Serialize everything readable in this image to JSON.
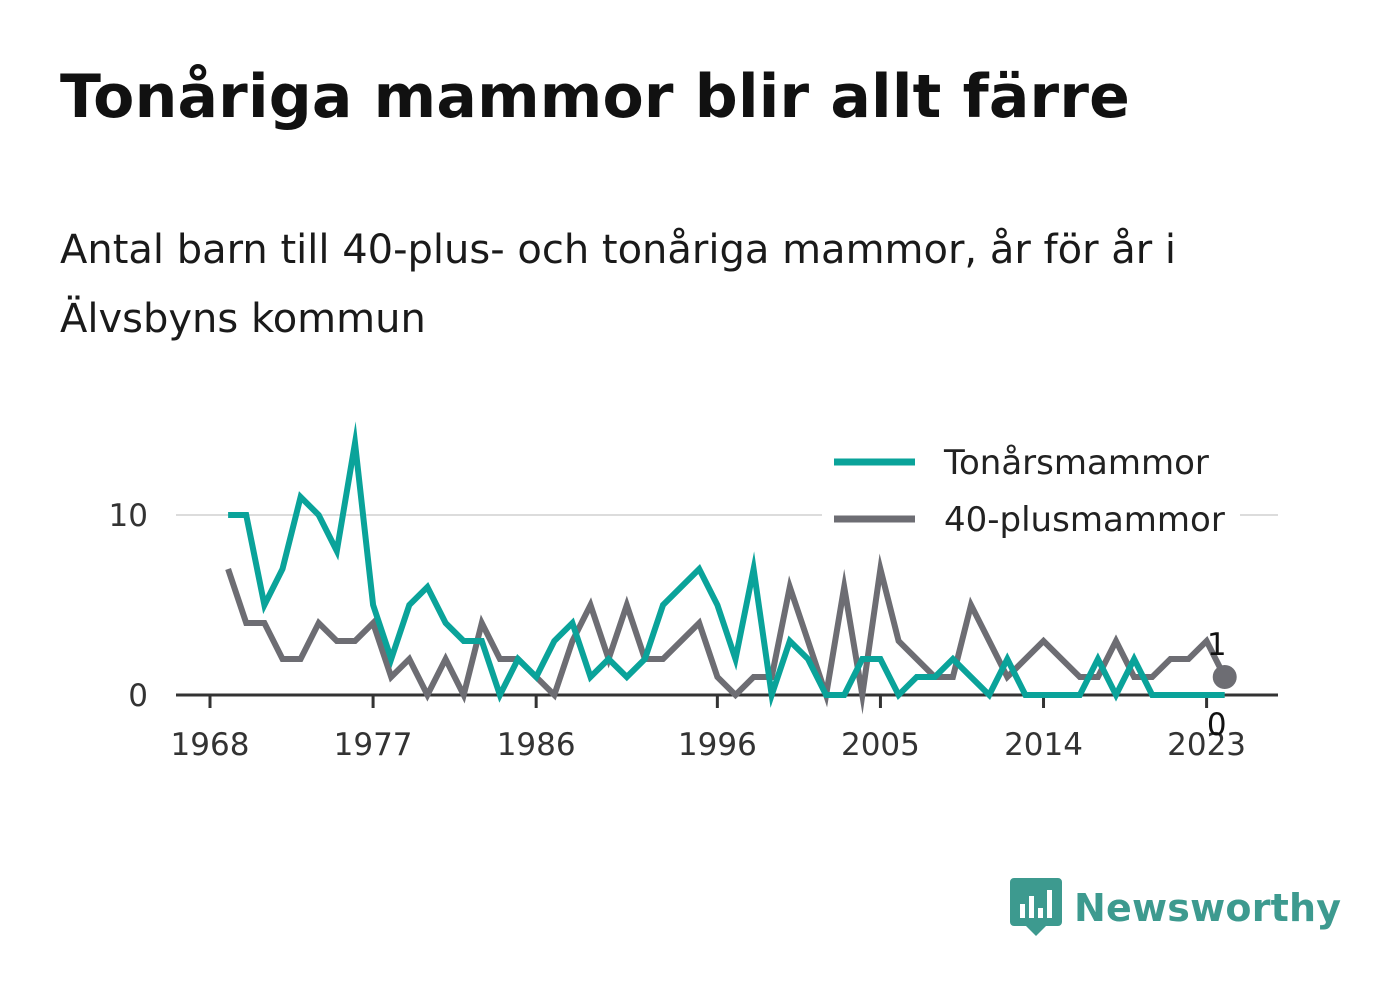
{
  "title": "Tonåriga mammor blir allt färre",
  "subtitle": "Antal barn till 40-plus- och tonåriga mammor, år för år i Älvsbyns kommun",
  "brand": {
    "name": "Newsworthy",
    "icon": "newsworthy-logo-icon",
    "color": "#3d9a8f"
  },
  "chart_data": {
    "type": "line",
    "xlim": [
      1968,
      2024
    ],
    "ylim": [
      0,
      14
    ],
    "x_ticks": [
      "1968",
      "1977",
      "1986",
      "1996",
      "2005",
      "2014",
      "2023"
    ],
    "y_ticks": [
      "0",
      "10"
    ],
    "grid": "horizontal",
    "legend_position": "top-right",
    "x": [
      1969,
      1970,
      1971,
      1972,
      1973,
      1974,
      1975,
      1976,
      1977,
      1978,
      1979,
      1980,
      1981,
      1982,
      1983,
      1984,
      1985,
      1986,
      1987,
      1988,
      1989,
      1990,
      1991,
      1992,
      1993,
      1994,
      1995,
      1996,
      1997,
      1998,
      1999,
      2000,
      2001,
      2002,
      2003,
      2004,
      2005,
      2006,
      2007,
      2008,
      2009,
      2010,
      2011,
      2012,
      2013,
      2014,
      2015,
      2016,
      2017,
      2018,
      2019,
      2020,
      2021,
      2022,
      2023,
      2024
    ],
    "series": [
      {
        "name": "Tonårsmammor",
        "color": "#0aa39a",
        "values": [
          10,
          10,
          5,
          7,
          11,
          10,
          8,
          14,
          5,
          2,
          5,
          6,
          4,
          3,
          3,
          0,
          2,
          1,
          3,
          4,
          1,
          2,
          1,
          2,
          5,
          6,
          7,
          5,
          2,
          7,
          0,
          3,
          2,
          0,
          0,
          2,
          2,
          0,
          1,
          1,
          2,
          1,
          0,
          2,
          0,
          0,
          0,
          0,
          2,
          0,
          2,
          0,
          0,
          0,
          0,
          0
        ],
        "end_label": "0"
      },
      {
        "name": "40-plusmammor",
        "color": "#6d6d73",
        "values": [
          7,
          4,
          4,
          2,
          2,
          4,
          3,
          3,
          4,
          1,
          2,
          0,
          2,
          0,
          4,
          2,
          2,
          1,
          0,
          3,
          5,
          2,
          5,
          2,
          2,
          3,
          4,
          1,
          0,
          1,
          1,
          6,
          3,
          0,
          6,
          0,
          7,
          3,
          2,
          1,
          1,
          5,
          3,
          1,
          2,
          3,
          2,
          1,
          1,
          3,
          1,
          1,
          2,
          2,
          3,
          1
        ],
        "end_label": "1"
      }
    ]
  }
}
